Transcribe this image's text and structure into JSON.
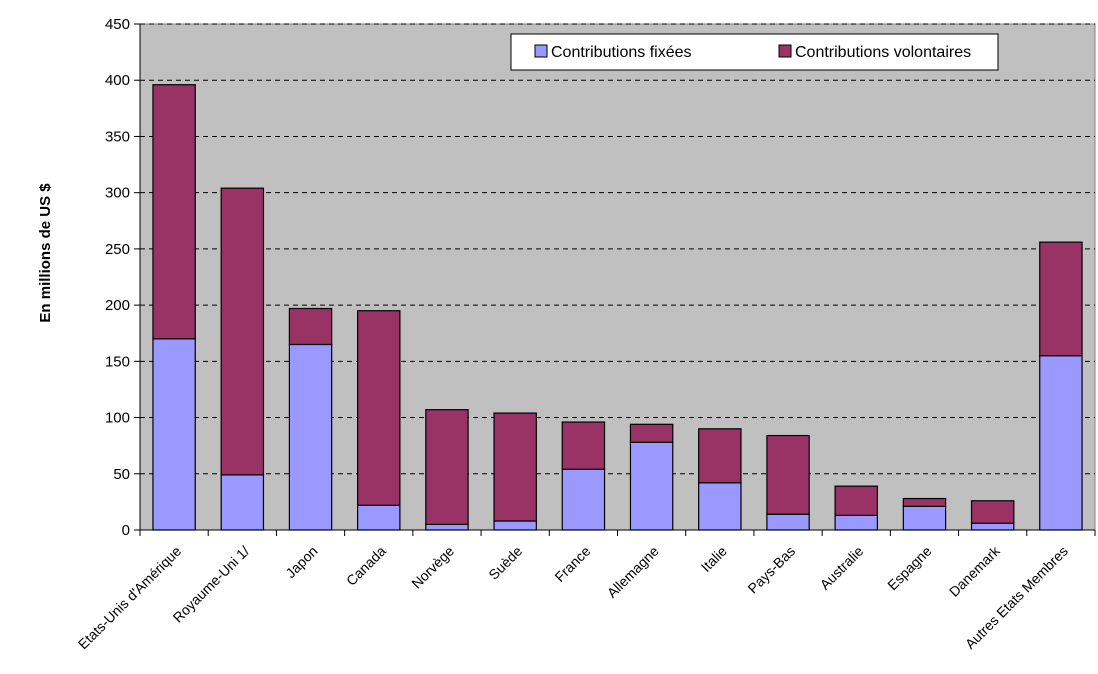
{
  "chart_data": {
    "type": "bar",
    "stacked": true,
    "title": "",
    "xlabel": "",
    "ylabel": "En millions de US $",
    "ylim": [
      0,
      450
    ],
    "yticks": [
      0,
      50,
      100,
      150,
      200,
      250,
      300,
      350,
      400,
      450
    ],
    "grid": "horizontal-dashed",
    "legend_position": "top-right",
    "background_color": "#c0c0c0",
    "categories": [
      "Etats-Unis d'Amérique",
      "Royaume-Uni 1/",
      "Japon",
      "Canada",
      "Norvège",
      "Suède",
      "France",
      "Allemagne",
      "Italie",
      "Pays-Bas",
      "Australie",
      "Espagne",
      "Danemark",
      "Autres Etats Membres"
    ],
    "series": [
      {
        "name": "Contributions fixées",
        "color": "#9999ff",
        "values": [
          170,
          49,
          165,
          22,
          5,
          8,
          54,
          78,
          42,
          14,
          13,
          21,
          6,
          155
        ]
      },
      {
        "name": "Contributions volontaires",
        "color": "#993366",
        "values": [
          226,
          255,
          32,
          173,
          102,
          96,
          42,
          16,
          48,
          70,
          26,
          7,
          20,
          101
        ]
      }
    ]
  }
}
